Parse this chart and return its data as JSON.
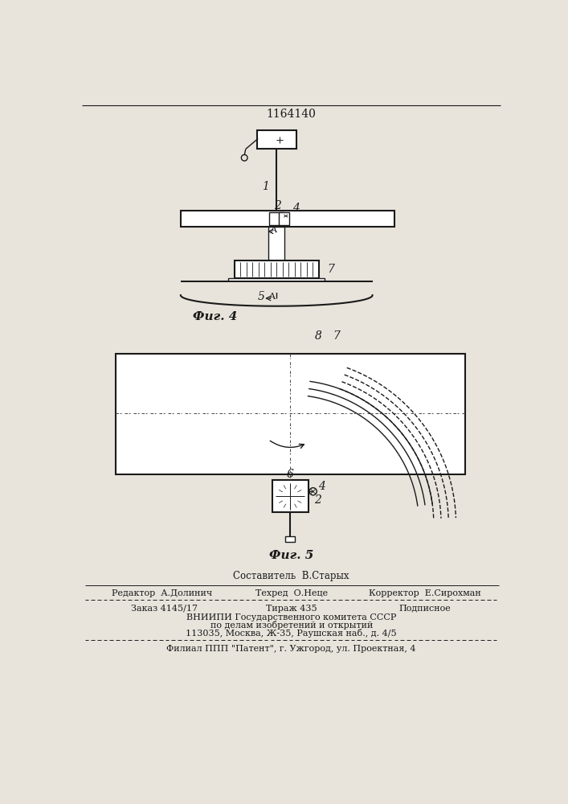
{
  "patent_number": "1164140",
  "fig4_label": "Фиг. 4",
  "fig5_label": "Фиг. 5",
  "bg_color": "#e8e4dc",
  "line_color": "#1a1a1a",
  "footer_sestavitel": "Составитель  В.Старых",
  "footer_line1_left": "Редактор  А.Долинич",
  "footer_line1_center": "Техред  О.Неце",
  "footer_line1_right": "Корректор  Е.Сирохман",
  "footer_line2_left": "Заказ 4145/17",
  "footer_line2_center": "Тираж 435",
  "footer_line2_right": "Подписное",
  "footer_line3": "ВНИИПИ Государственного комитета СССР",
  "footer_line4": "по делам изобретений и открытий",
  "footer_line5": "113035, Москва, Ж-35, Раушская наб., д. 4/5",
  "footer_line6": "Филиал ППП \"Патент\", г. Ужгород, ул. Проектная, 4"
}
